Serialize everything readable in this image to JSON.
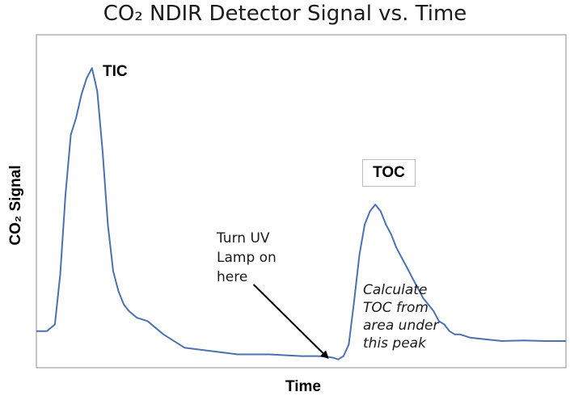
{
  "chart_data": {
    "type": "line",
    "title": "CO₂ NDIR Detector Signal vs. Time",
    "xlabel": "Time",
    "ylabel": "CO₂ Signal",
    "xlim": [
      0,
      100
    ],
    "ylim": [
      0,
      100
    ],
    "grid": false,
    "legend": "none",
    "series": [
      {
        "color": "#4a72b0",
        "x": [
          0,
          2,
          3.5,
          4.5,
          5.5,
          6.5,
          7.5,
          8.5,
          9.5,
          10.5,
          11.5,
          12.5,
          13.5,
          14.5,
          15.5,
          16.5,
          17.5,
          19,
          21,
          24,
          28,
          33,
          38,
          44,
          50,
          53,
          55,
          56,
          57,
          58,
          59,
          60,
          61,
          62,
          63,
          64,
          65,
          66,
          67,
          68,
          69,
          70,
          71,
          72,
          73,
          74,
          75,
          76,
          77,
          78,
          79,
          80,
          82,
          85,
          88,
          92,
          96,
          100
        ],
        "y": [
          11,
          11,
          13,
          28,
          52,
          70,
          75,
          82,
          87,
          90,
          83,
          65,
          43,
          29,
          23,
          19,
          17,
          15,
          14,
          10,
          6,
          5,
          4,
          4,
          3.5,
          3.5,
          3.3,
          3.0,
          2.5,
          3.5,
          7,
          20,
          34,
          43,
          47,
          49,
          47,
          43,
          40,
          36,
          33,
          30,
          27,
          24,
          21,
          19,
          17,
          14,
          13,
          11,
          10,
          10,
          9,
          8.5,
          8,
          8.2,
          8,
          8
        ]
      }
    ],
    "annotations": {
      "tic_label": "TIC",
      "toc_label": "TOC",
      "uv_note": [
        "Turn UV",
        "Lamp on",
        "here"
      ],
      "calc_note": [
        "Calculate",
        "TOC  from",
        "area under",
        "this peak"
      ],
      "arrow_start": [
        41,
        25
      ],
      "arrow_end": [
        55,
        3
      ]
    }
  }
}
